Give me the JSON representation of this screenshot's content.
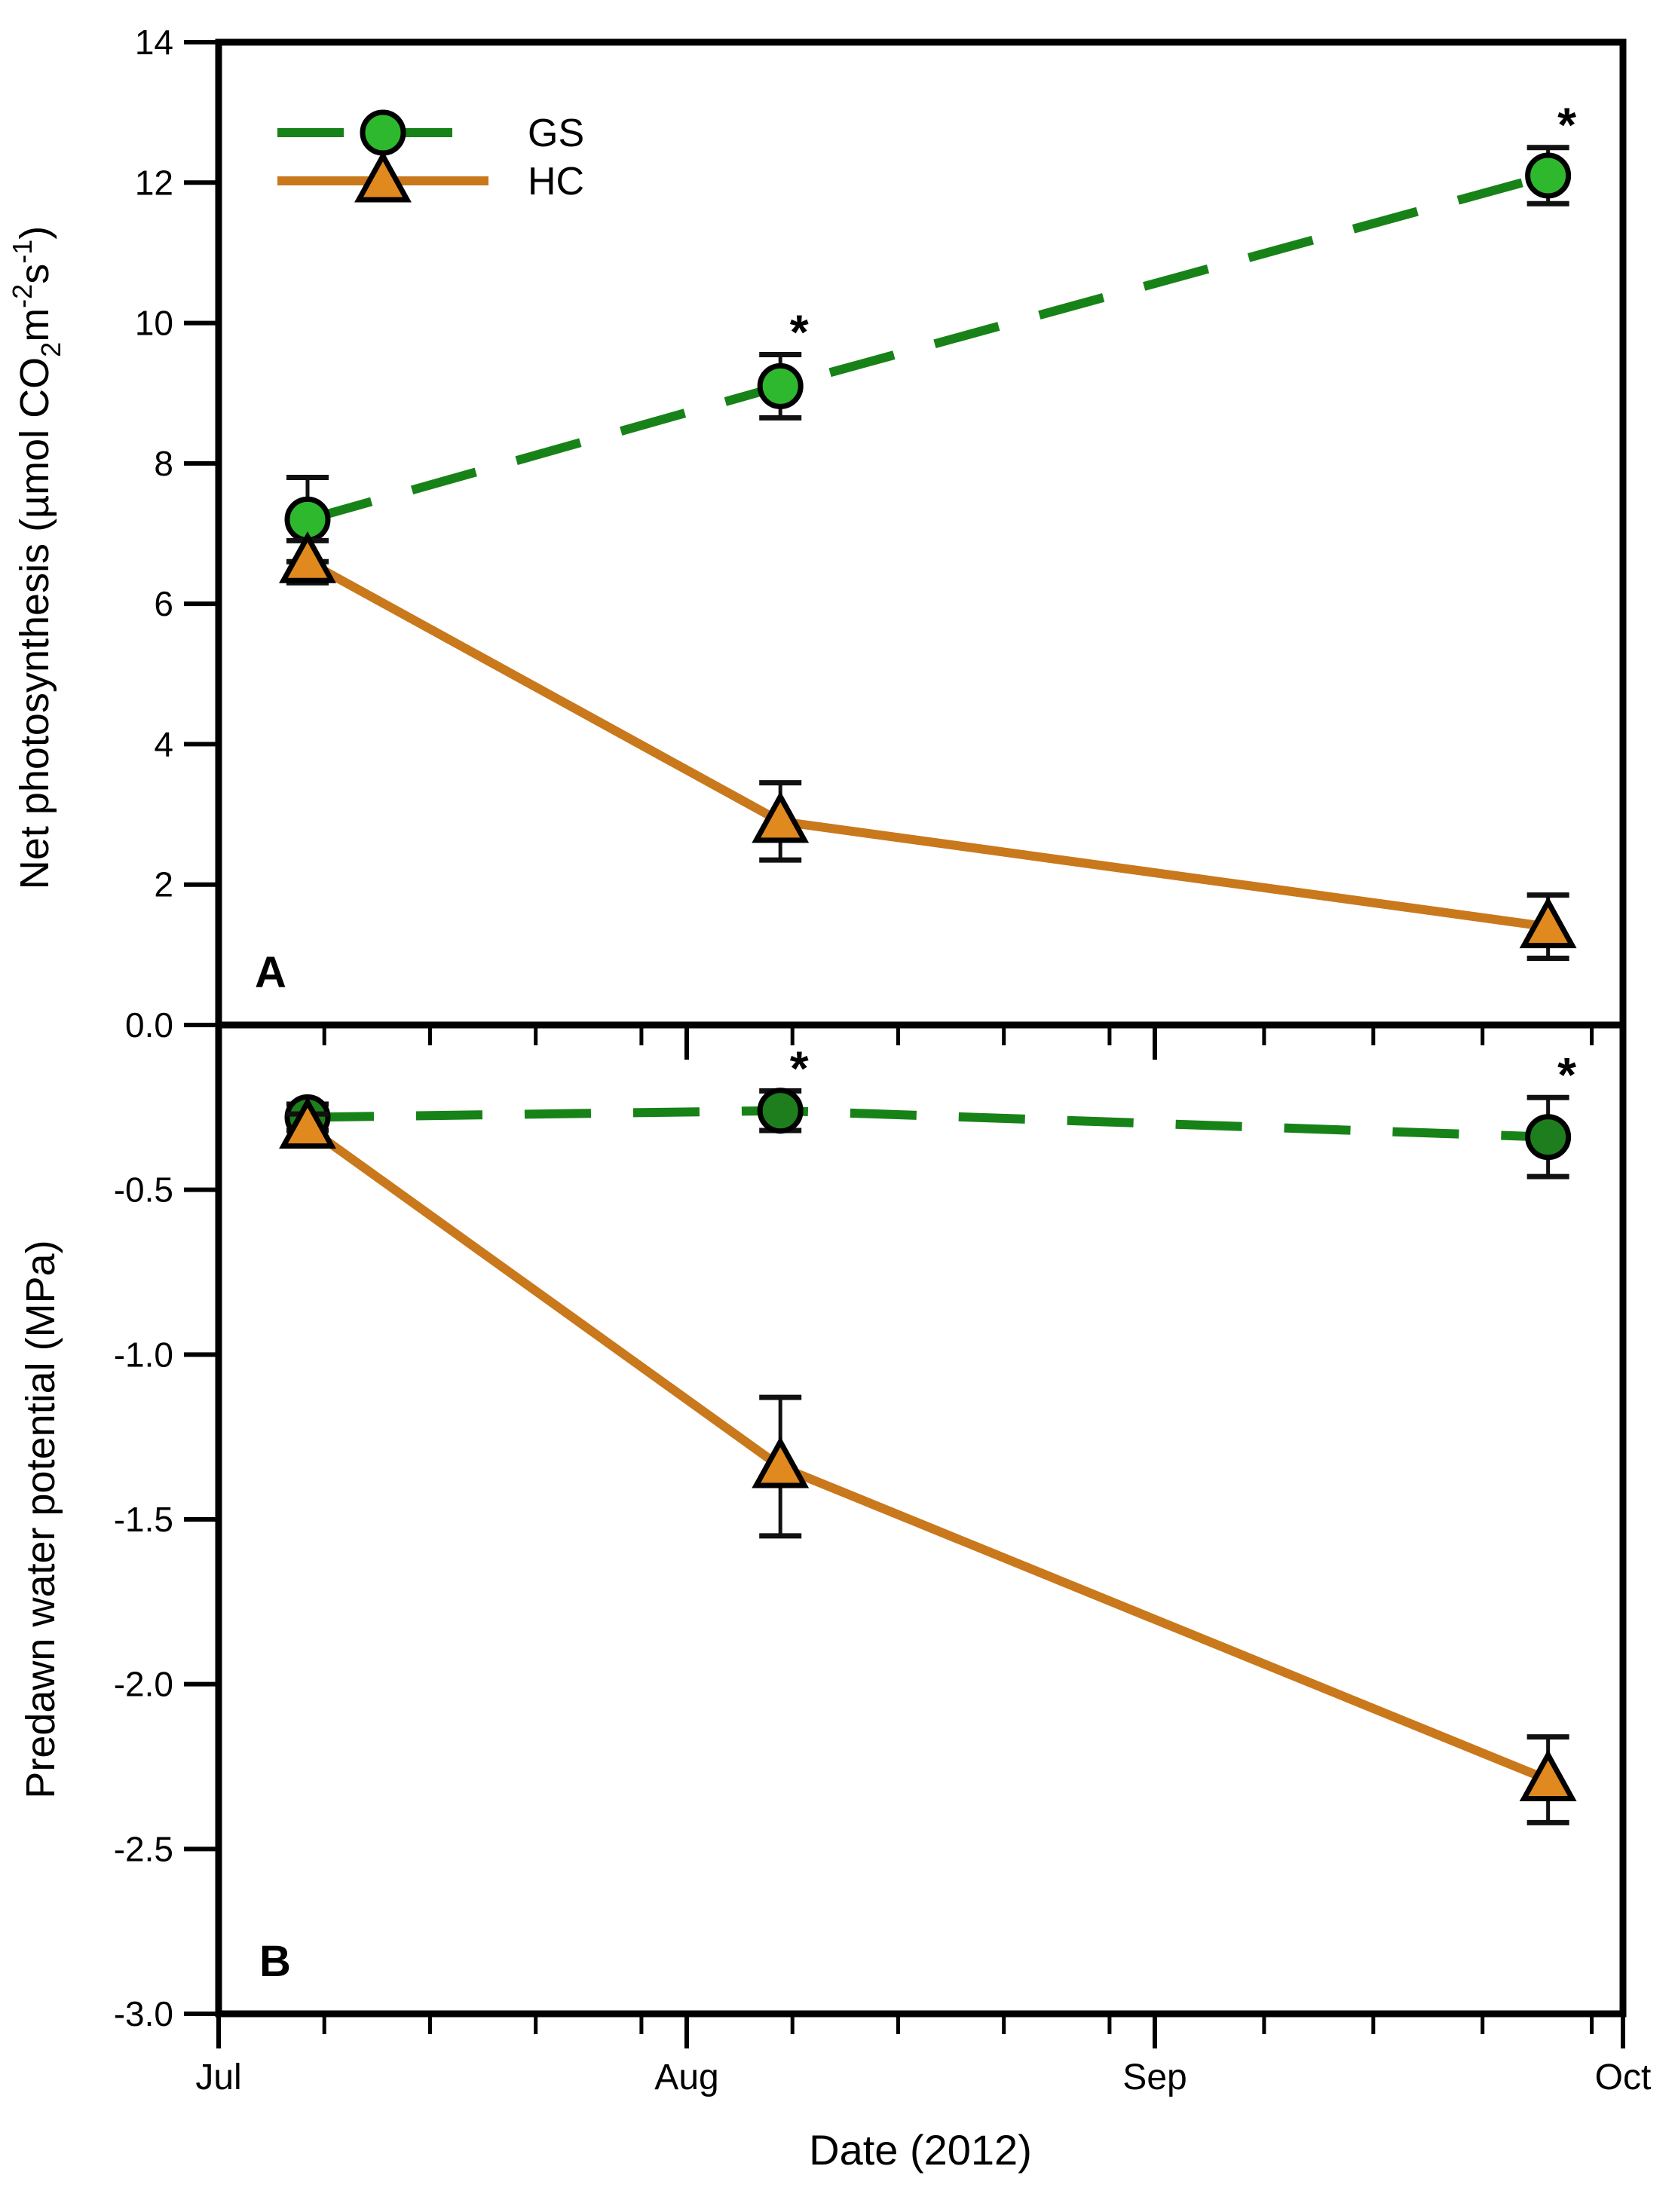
{
  "figure": {
    "background": "#ffffff",
    "frame_color": "#000000",
    "error_bar_color": "#111111",
    "significance_marker": "*",
    "x_axis": {
      "title": "Date (2012)",
      "tick_labels": [
        "Jul",
        "Aug",
        "Sep",
        "Oct"
      ],
      "month_lengths_days": [
        31,
        31,
        30
      ],
      "minor_tick_days": [
        7,
        14,
        21,
        28
      ]
    },
    "legend": {
      "position": "top-left-inside-panel-A",
      "items": [
        {
          "label": "GS",
          "line": "dashed",
          "marker": "circle",
          "line_color": "#178217",
          "marker_fill": "#2eb82e"
        },
        {
          "label": "HC",
          "line": "solid",
          "marker": "triangle",
          "line_color": "#c9781c",
          "marker_fill": "#e0891f"
        }
      ]
    },
    "panel_letters": {
      "a": "A",
      "b": "B"
    }
  },
  "chart_data": [
    {
      "type": "line",
      "panel": "A",
      "ylabel": "Net photosynthesis (µmol CO2m-2s-1)",
      "ylabel_segments": [
        {
          "t": "Net photosynthesis (µmol CO"
        },
        {
          "t": "2",
          "shift": "sub"
        },
        {
          "t": "m"
        },
        {
          "t": "-2",
          "shift": "sup"
        },
        {
          "t": "s"
        },
        {
          "t": "-1",
          "shift": "sup"
        },
        {
          "t": ")"
        }
      ],
      "ylim": [
        0,
        14
      ],
      "yticks": [
        {
          "v": 0,
          "label": "0.0"
        },
        {
          "v": 2,
          "label": "2"
        },
        {
          "v": 4,
          "label": "4"
        },
        {
          "v": 6,
          "label": "6"
        },
        {
          "v": 8,
          "label": "8"
        },
        {
          "v": 10,
          "label": "10"
        },
        {
          "v": 12,
          "label": "12"
        },
        {
          "v": 14,
          "label": "14"
        }
      ],
      "x_months_after_jul1": [
        0.19,
        1.2,
        2.84
      ],
      "x_dates_approx": [
        "Jul 6",
        "Aug 7",
        "Sep 26"
      ],
      "series": [
        {
          "name": "GS",
          "values": [
            7.2,
            9.1,
            12.1
          ],
          "errors": [
            0.6,
            0.45,
            0.4
          ],
          "significant": [
            false,
            true,
            true
          ],
          "line": "dashed",
          "marker": "circle",
          "line_color": "#178217",
          "marker_fill": "#2eb82e"
        },
        {
          "name": "HC",
          "values": [
            6.6,
            2.9,
            1.4
          ],
          "errors": [
            0.3,
            0.55,
            0.45
          ],
          "significant": [
            false,
            false,
            false
          ],
          "line": "solid",
          "marker": "triangle",
          "line_color": "#c9781c",
          "marker_fill": "#e0891f"
        }
      ]
    },
    {
      "type": "line",
      "panel": "B",
      "ylabel": "Predawn water potential (MPa)",
      "ylabel_segments": [
        {
          "t": "Predawn water potential (MPa)"
        }
      ],
      "ylim": [
        -3.0,
        0.0
      ],
      "yticks": [
        {
          "v": -0.5,
          "label": "-0.5"
        },
        {
          "v": -1.0,
          "label": "-1.0"
        },
        {
          "v": -1.5,
          "label": "-1.5"
        },
        {
          "v": -2.0,
          "label": "-2.0"
        },
        {
          "v": -2.5,
          "label": "-2.5"
        },
        {
          "v": -3.0,
          "label": "-3.0"
        }
      ],
      "x_months_after_jul1": [
        0.19,
        1.2,
        2.84
      ],
      "x_dates_approx": [
        "Jul 6",
        "Aug 7",
        "Sep 26"
      ],
      "series": [
        {
          "name": "GS",
          "values": [
            -0.28,
            -0.26,
            -0.34
          ],
          "errors": [
            0.04,
            0.06,
            0.12
          ],
          "significant": [
            false,
            true,
            true
          ],
          "line": "dashed",
          "marker": "circle",
          "line_color": "#178217",
          "marker_fill": "#1e7e1e"
        },
        {
          "name": "HC",
          "values": [
            -0.31,
            -1.34,
            -2.29
          ],
          "errors": [
            0.04,
            0.21,
            0.13
          ],
          "significant": [
            false,
            false,
            false
          ],
          "line": "solid",
          "marker": "triangle",
          "line_color": "#c9781c",
          "marker_fill": "#e0891f"
        }
      ]
    }
  ]
}
